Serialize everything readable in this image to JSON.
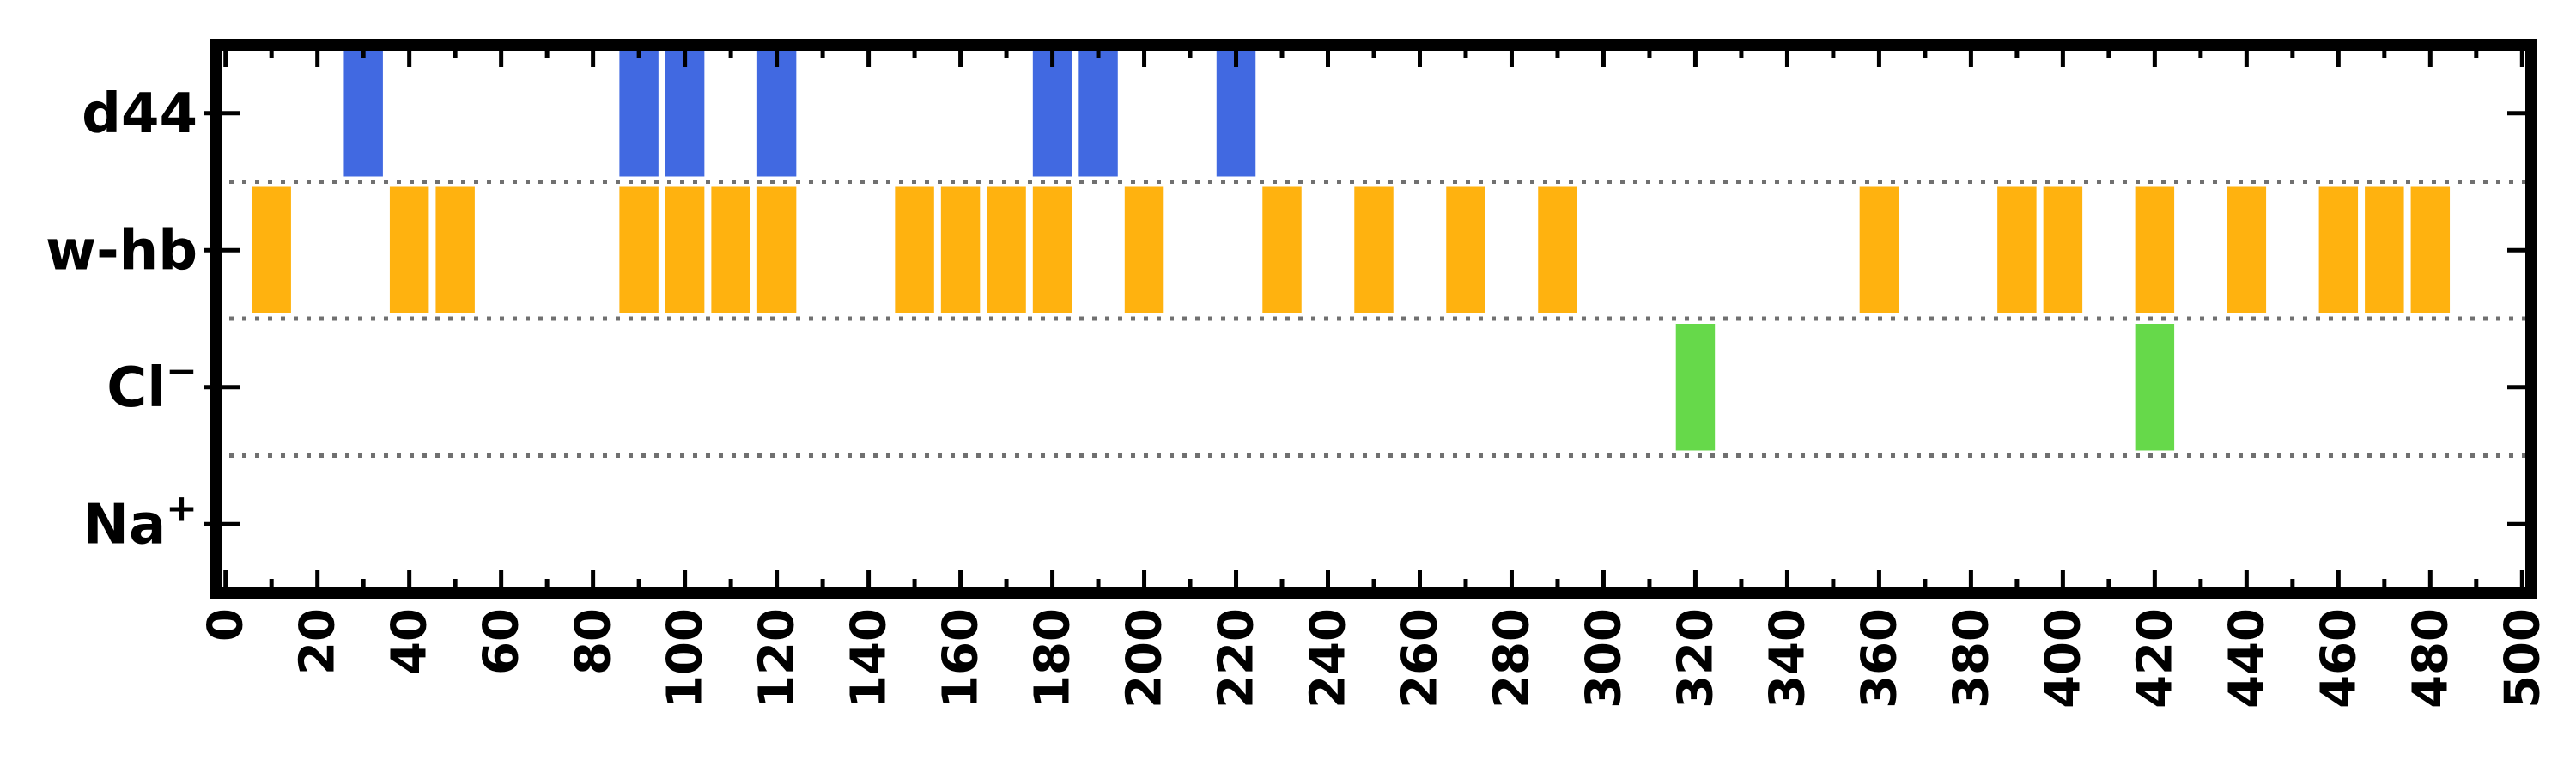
{
  "chart_data": {
    "type": "bar",
    "subtype": "event-strip",
    "title": "",
    "xlabel": "",
    "ylabel": "",
    "xlim": [
      -2,
      502
    ],
    "xticks": [
      0,
      20,
      40,
      60,
      80,
      100,
      120,
      140,
      160,
      180,
      200,
      220,
      240,
      260,
      280,
      300,
      320,
      340,
      360,
      380,
      400,
      420,
      440,
      460,
      480,
      500
    ],
    "minor_xtick_step": 10,
    "bar_width": 8.5,
    "grid": "dotted row separators",
    "categories": [
      {
        "name": "d44",
        "sup": ""
      },
      {
        "name": "w-hb",
        "sup": ""
      },
      {
        "name": "Cl",
        "sup": "−"
      },
      {
        "name": "Na",
        "sup": "+"
      }
    ],
    "series": [
      {
        "category": "d44",
        "color": "#4169e1",
        "x": [
          30,
          90,
          100,
          120,
          180,
          190,
          220
        ]
      },
      {
        "category": "w-hb",
        "color": "#ffb20f",
        "x": [
          10,
          40,
          50,
          90,
          100,
          110,
          120,
          150,
          160,
          170,
          180,
          200,
          230,
          250,
          270,
          290,
          360,
          390,
          400,
          420,
          440,
          460,
          470,
          480
        ]
      },
      {
        "category": "Cl",
        "color": "#66d94a",
        "x": [
          320,
          420
        ]
      },
      {
        "category": "Na",
        "color": "#9467bd",
        "x": []
      }
    ]
  }
}
